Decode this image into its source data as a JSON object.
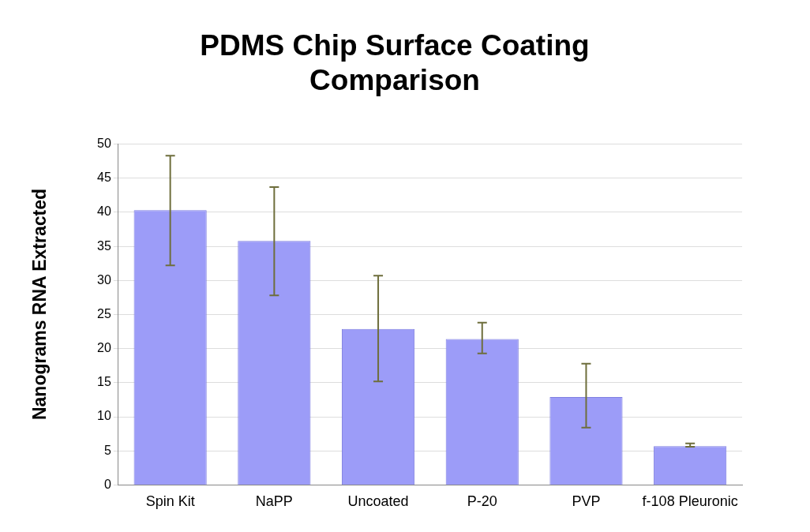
{
  "chart_data": {
    "type": "bar",
    "title": "PDMS Chip Surface Coating Comparison",
    "ylabel": "Nanograms RNA Extracted",
    "categories": [
      "Spin Kit",
      "NaPP",
      "Uncoated",
      "P-20",
      "PVP",
      "f-108 Pleuronic"
    ],
    "values": [
      40.3,
      35.8,
      22.9,
      21.4,
      12.9,
      5.7
    ],
    "errors": [
      [
        32.2,
        48.3
      ],
      [
        27.8,
        43.7
      ],
      [
        15.2,
        30.7
      ],
      [
        19.3,
        23.8
      ],
      [
        8.4,
        17.8
      ],
      [
        5.6,
        6.1
      ]
    ],
    "color": "#9c9cf8",
    "ylim": [
      0,
      50
    ],
    "yticks": [
      0,
      5,
      10,
      15,
      20,
      25,
      30,
      35,
      40,
      45,
      50
    ],
    "grid": "y",
    "legend": false
  }
}
